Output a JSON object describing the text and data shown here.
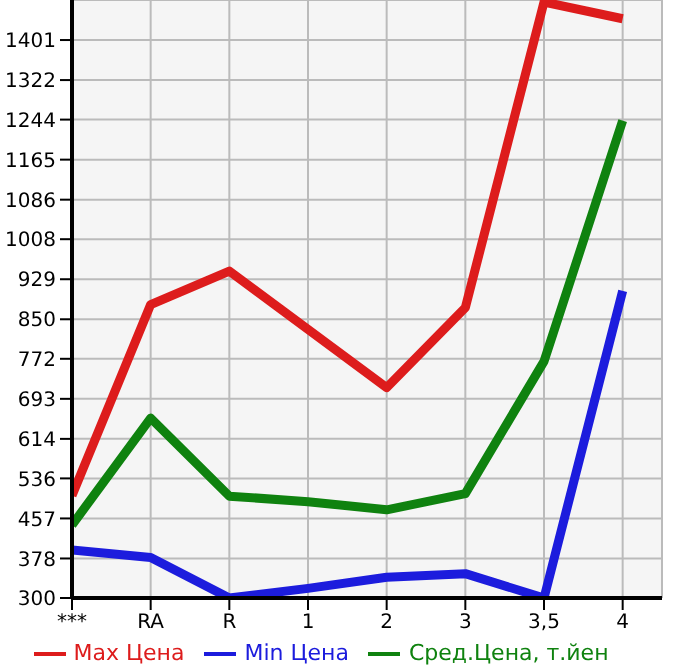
{
  "chart_data": {
    "type": "line",
    "categories": [
      "***",
      "RA",
      "R",
      "1",
      "2",
      "3",
      "3,5",
      "4"
    ],
    "series": [
      {
        "name": "Max Цена",
        "color": "#dd1c1c",
        "values": [
          502,
          879,
          945,
          830,
          715,
          873,
          1476,
          1443
        ]
      },
      {
        "name": "Min Цена",
        "color": "#1c1cdd",
        "values": [
          395,
          380,
          300,
          319,
          341,
          348,
          300,
          906
        ]
      },
      {
        "name": "Сред.Цена, т.йен",
        "color": "#0f820f",
        "values": [
          444,
          655,
          501,
          490,
          474,
          506,
          767,
          1242
        ]
      }
    ],
    "ylim": [
      300,
      1480
    ],
    "yticks": [
      300,
      378,
      457,
      536,
      614,
      693,
      772,
      850,
      929,
      1008,
      1086,
      1165,
      1244,
      1322,
      1401
    ],
    "grid": true,
    "legend": "bottom",
    "marker": "none",
    "line_style": "solid"
  }
}
